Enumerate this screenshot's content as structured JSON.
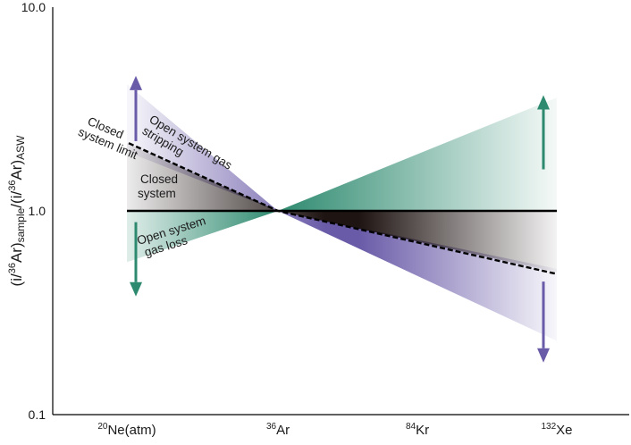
{
  "chart_data": {
    "type": "line",
    "y_scale": "log",
    "ylim": [
      0.1,
      10.0
    ],
    "yticks": [
      {
        "value": 0.1,
        "label": "0.1"
      },
      {
        "value": 1.0,
        "label": "1.0"
      },
      {
        "value": 10.0,
        "label": "10.0"
      }
    ],
    "ylabel": {
      "prefix": "(i/",
      "sup1": "36",
      "mid1": "Ar)",
      "sub1": "sample",
      "mid2": "/(i/",
      "sup2": "36",
      "mid3": "Ar)",
      "sub2": "ASW"
    },
    "categories": [
      {
        "sup": "20",
        "base": "Ne(atm)"
      },
      {
        "sup": "36",
        "base": "Ar"
      },
      {
        "sup": "84",
        "base": "Kr"
      },
      {
        "sup": "132",
        "base": "Xe"
      }
    ],
    "series": [
      {
        "key": "unity",
        "values": [
          1.0,
          1.0,
          1.0,
          1.0
        ],
        "style": "solid",
        "color": "#000000"
      },
      {
        "key": "closed_limit",
        "values": [
          2.15,
          1.0,
          0.71,
          0.49
        ],
        "style": "dashed",
        "color": "#000000"
      }
    ],
    "regions": [
      {
        "key": "stripping",
        "color": "#6a5ba8",
        "bounds": {
          "Ne": [
            1.95,
            4.2
          ],
          "Ar": [
            1.0,
            1.0
          ],
          "Xe": [
            0.23,
            0.52
          ]
        }
      },
      {
        "key": "closed_system",
        "color": "#1e1412",
        "bounds": {
          "Ne": [
            1.0,
            2.15
          ],
          "Ar": [
            1.0,
            1.0
          ],
          "Xe": [
            0.5,
            1.0
          ]
        }
      },
      {
        "key": "gas_loss_left",
        "color": "#2e8a6f",
        "bounds": {
          "Ne": [
            0.56,
            1.0
          ],
          "Ar": [
            1.0,
            1.0
          ]
        }
      },
      {
        "key": "gas_loss_right",
        "color": "#2e8a6f",
        "bounds": {
          "Ar": [
            1.0,
            1.0
          ],
          "Xe": [
            1.0,
            3.6
          ]
        }
      }
    ],
    "arrows": [
      {
        "key": "ne_up",
        "x": 0,
        "from": 2.2,
        "to": 4.6,
        "color": "#6a5ba8"
      },
      {
        "key": "ne_down",
        "x": 0,
        "from": 0.88,
        "to": 0.38,
        "color": "#2e8a6f"
      },
      {
        "key": "xe_up",
        "x": 3,
        "from": 1.6,
        "to": 3.7,
        "color": "#2e8a6f"
      },
      {
        "key": "xe_down",
        "x": 3,
        "from": 0.45,
        "to": 0.18,
        "color": "#6a5ba8"
      }
    ],
    "annotations": [
      {
        "key": "ann_stripping",
        "lines": [
          "Open system gas",
          "stripping"
        ]
      },
      {
        "key": "ann_limit",
        "lines": [
          "Closed",
          "system limit"
        ]
      },
      {
        "key": "ann_closed",
        "lines": [
          "Closed",
          "system"
        ]
      },
      {
        "key": "ann_loss",
        "lines": [
          "Open system",
          "gas loss"
        ]
      }
    ],
    "grid": false,
    "legend": "none"
  }
}
